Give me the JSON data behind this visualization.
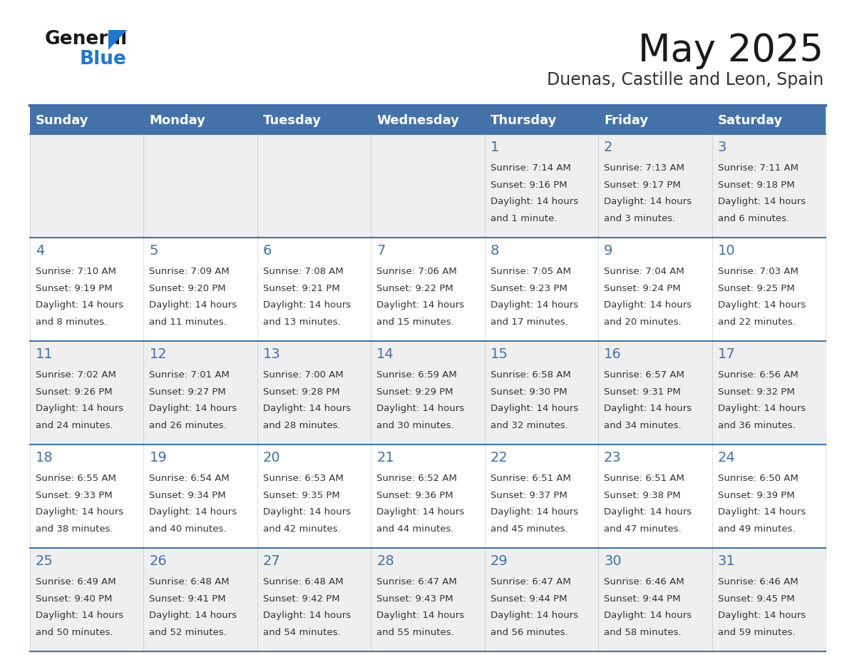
{
  "title": "May 2025",
  "subtitle": "Duenas, Castille and Leon, Spain",
  "days_of_week": [
    "Sunday",
    "Monday",
    "Tuesday",
    "Wednesday",
    "Thursday",
    "Friday",
    "Saturday"
  ],
  "header_bg_color": "#4472A8",
  "header_text_color": "#FFFFFF",
  "row_bg_colors": [
    "#EFEFEF",
    "#FFFFFF",
    "#EFEFEF",
    "#FFFFFF",
    "#EFEFEF"
  ],
  "line_color": "#4472A8",
  "title_color": "#1a1a1a",
  "subtitle_color": "#333333",
  "day_number_color": "#4472A8",
  "cell_text_color": "#333333",
  "logo_general_color": "#1a1a1a",
  "logo_blue_color": "#2277CC",
  "logo_triangle_color": "#2277CC",
  "calendar": [
    [
      null,
      null,
      null,
      null,
      {
        "day": "1",
        "sunrise": "7:14 AM",
        "sunset": "9:16 PM",
        "daylight_line1": "Daylight: 14 hours",
        "daylight_line2": "and 1 minute."
      },
      {
        "day": "2",
        "sunrise": "7:13 AM",
        "sunset": "9:17 PM",
        "daylight_line1": "Daylight: 14 hours",
        "daylight_line2": "and 3 minutes."
      },
      {
        "day": "3",
        "sunrise": "7:11 AM",
        "sunset": "9:18 PM",
        "daylight_line1": "Daylight: 14 hours",
        "daylight_line2": "and 6 minutes."
      }
    ],
    [
      {
        "day": "4",
        "sunrise": "7:10 AM",
        "sunset": "9:19 PM",
        "daylight_line1": "Daylight: 14 hours",
        "daylight_line2": "and 8 minutes."
      },
      {
        "day": "5",
        "sunrise": "7:09 AM",
        "sunset": "9:20 PM",
        "daylight_line1": "Daylight: 14 hours",
        "daylight_line2": "and 11 minutes."
      },
      {
        "day": "6",
        "sunrise": "7:08 AM",
        "sunset": "9:21 PM",
        "daylight_line1": "Daylight: 14 hours",
        "daylight_line2": "and 13 minutes."
      },
      {
        "day": "7",
        "sunrise": "7:06 AM",
        "sunset": "9:22 PM",
        "daylight_line1": "Daylight: 14 hours",
        "daylight_line2": "and 15 minutes."
      },
      {
        "day": "8",
        "sunrise": "7:05 AM",
        "sunset": "9:23 PM",
        "daylight_line1": "Daylight: 14 hours",
        "daylight_line2": "and 17 minutes."
      },
      {
        "day": "9",
        "sunrise": "7:04 AM",
        "sunset": "9:24 PM",
        "daylight_line1": "Daylight: 14 hours",
        "daylight_line2": "and 20 minutes."
      },
      {
        "day": "10",
        "sunrise": "7:03 AM",
        "sunset": "9:25 PM",
        "daylight_line1": "Daylight: 14 hours",
        "daylight_line2": "and 22 minutes."
      }
    ],
    [
      {
        "day": "11",
        "sunrise": "7:02 AM",
        "sunset": "9:26 PM",
        "daylight_line1": "Daylight: 14 hours",
        "daylight_line2": "and 24 minutes."
      },
      {
        "day": "12",
        "sunrise": "7:01 AM",
        "sunset": "9:27 PM",
        "daylight_line1": "Daylight: 14 hours",
        "daylight_line2": "and 26 minutes."
      },
      {
        "day": "13",
        "sunrise": "7:00 AM",
        "sunset": "9:28 PM",
        "daylight_line1": "Daylight: 14 hours",
        "daylight_line2": "and 28 minutes."
      },
      {
        "day": "14",
        "sunrise": "6:59 AM",
        "sunset": "9:29 PM",
        "daylight_line1": "Daylight: 14 hours",
        "daylight_line2": "and 30 minutes."
      },
      {
        "day": "15",
        "sunrise": "6:58 AM",
        "sunset": "9:30 PM",
        "daylight_line1": "Daylight: 14 hours",
        "daylight_line2": "and 32 minutes."
      },
      {
        "day": "16",
        "sunrise": "6:57 AM",
        "sunset": "9:31 PM",
        "daylight_line1": "Daylight: 14 hours",
        "daylight_line2": "and 34 minutes."
      },
      {
        "day": "17",
        "sunrise": "6:56 AM",
        "sunset": "9:32 PM",
        "daylight_line1": "Daylight: 14 hours",
        "daylight_line2": "and 36 minutes."
      }
    ],
    [
      {
        "day": "18",
        "sunrise": "6:55 AM",
        "sunset": "9:33 PM",
        "daylight_line1": "Daylight: 14 hours",
        "daylight_line2": "and 38 minutes."
      },
      {
        "day": "19",
        "sunrise": "6:54 AM",
        "sunset": "9:34 PM",
        "daylight_line1": "Daylight: 14 hours",
        "daylight_line2": "and 40 minutes."
      },
      {
        "day": "20",
        "sunrise": "6:53 AM",
        "sunset": "9:35 PM",
        "daylight_line1": "Daylight: 14 hours",
        "daylight_line2": "and 42 minutes."
      },
      {
        "day": "21",
        "sunrise": "6:52 AM",
        "sunset": "9:36 PM",
        "daylight_line1": "Daylight: 14 hours",
        "daylight_line2": "and 44 minutes."
      },
      {
        "day": "22",
        "sunrise": "6:51 AM",
        "sunset": "9:37 PM",
        "daylight_line1": "Daylight: 14 hours",
        "daylight_line2": "and 45 minutes."
      },
      {
        "day": "23",
        "sunrise": "6:51 AM",
        "sunset": "9:38 PM",
        "daylight_line1": "Daylight: 14 hours",
        "daylight_line2": "and 47 minutes."
      },
      {
        "day": "24",
        "sunrise": "6:50 AM",
        "sunset": "9:39 PM",
        "daylight_line1": "Daylight: 14 hours",
        "daylight_line2": "and 49 minutes."
      }
    ],
    [
      {
        "day": "25",
        "sunrise": "6:49 AM",
        "sunset": "9:40 PM",
        "daylight_line1": "Daylight: 14 hours",
        "daylight_line2": "and 50 minutes."
      },
      {
        "day": "26",
        "sunrise": "6:48 AM",
        "sunset": "9:41 PM",
        "daylight_line1": "Daylight: 14 hours",
        "daylight_line2": "and 52 minutes."
      },
      {
        "day": "27",
        "sunrise": "6:48 AM",
        "sunset": "9:42 PM",
        "daylight_line1": "Daylight: 14 hours",
        "daylight_line2": "and 54 minutes."
      },
      {
        "day": "28",
        "sunrise": "6:47 AM",
        "sunset": "9:43 PM",
        "daylight_line1": "Daylight: 14 hours",
        "daylight_line2": "and 55 minutes."
      },
      {
        "day": "29",
        "sunrise": "6:47 AM",
        "sunset": "9:44 PM",
        "daylight_line1": "Daylight: 14 hours",
        "daylight_line2": "and 56 minutes."
      },
      {
        "day": "30",
        "sunrise": "6:46 AM",
        "sunset": "9:44 PM",
        "daylight_line1": "Daylight: 14 hours",
        "daylight_line2": "and 58 minutes."
      },
      {
        "day": "31",
        "sunrise": "6:46 AM",
        "sunset": "9:45 PM",
        "daylight_line1": "Daylight: 14 hours",
        "daylight_line2": "and 59 minutes."
      }
    ]
  ]
}
